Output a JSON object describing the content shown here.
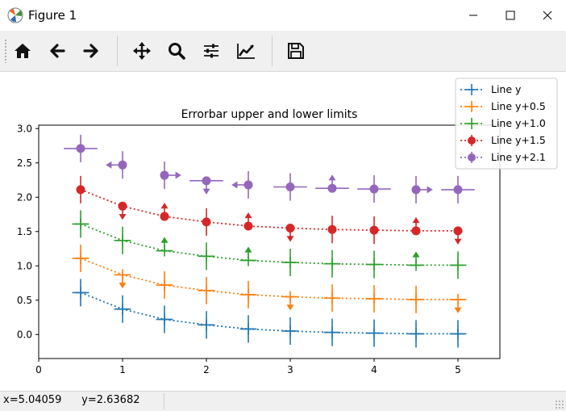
{
  "window": {
    "title": "Figure 1",
    "icon": "matplotlib-icon",
    "controls": [
      "minimize-icon",
      "maximize-icon",
      "close-icon"
    ]
  },
  "toolbar": {
    "buttons": [
      {
        "name": "home-button",
        "icon": "home-icon"
      },
      {
        "name": "back-button",
        "icon": "arrow-left-icon"
      },
      {
        "name": "forward-button",
        "icon": "arrow-right-icon"
      },
      {
        "name": "pan-button",
        "icon": "move-icon"
      },
      {
        "name": "zoom-button",
        "icon": "magnifier-icon"
      },
      {
        "name": "subplots-button",
        "icon": "sliders-icon"
      },
      {
        "name": "edit-axis-button",
        "icon": "line-chart-icon"
      },
      {
        "name": "save-button",
        "icon": "floppy-disk-icon"
      }
    ]
  },
  "status": {
    "text": "x=5.04059      y=2.63682"
  },
  "chart_data": {
    "type": "line",
    "title": "Errorbar upper and lower limits",
    "xlabel": "",
    "ylabel": "",
    "xlim": [
      0,
      5.5
    ],
    "ylim": [
      -0.35,
      3.05
    ],
    "xticks": [
      "0",
      "1",
      "2",
      "3",
      "4",
      "5"
    ],
    "yticks": [
      "0.0",
      "0.5",
      "1.0",
      "1.5",
      "2.0",
      "2.5",
      "3.0"
    ],
    "x": [
      0.5,
      1.0,
      1.5,
      2.0,
      2.5,
      3.0,
      3.5,
      4.0,
      4.5,
      5.0
    ],
    "legend_position": "upper right, outside axes",
    "series": [
      {
        "name": "Line y",
        "color": "#1f77b4",
        "marker": "+",
        "y": [
          0.61,
          0.37,
          0.22,
          0.14,
          0.08,
          0.05,
          0.03,
          0.02,
          0.01,
          0.01
        ],
        "xerr": 0.1,
        "yerr": 0.2,
        "uplims": [
          false,
          false,
          false,
          false,
          false,
          false,
          false,
          false,
          false,
          false
        ],
        "lolims": [
          false,
          false,
          false,
          false,
          false,
          false,
          false,
          false,
          false,
          false
        ]
      },
      {
        "name": "Line y+0.5",
        "color": "#ff7f0e",
        "marker": "+",
        "y": [
          1.11,
          0.87,
          0.72,
          0.64,
          0.58,
          0.55,
          0.53,
          0.52,
          0.51,
          0.51
        ],
        "xerr": 0.1,
        "yerr": 0.2,
        "uplims": [
          false,
          true,
          false,
          false,
          false,
          true,
          false,
          false,
          false,
          true
        ],
        "lolims": [
          false,
          false,
          false,
          false,
          false,
          false,
          false,
          false,
          false,
          false
        ]
      },
      {
        "name": "Line y+1.0",
        "color": "#2ca02c",
        "marker": "+",
        "y": [
          1.61,
          1.37,
          1.22,
          1.14,
          1.08,
          1.05,
          1.03,
          1.02,
          1.01,
          1.01
        ],
        "xerr": 0.1,
        "yerr": 0.2,
        "uplims": [
          false,
          false,
          false,
          false,
          false,
          false,
          false,
          false,
          false,
          false
        ],
        "lolims": [
          false,
          false,
          true,
          false,
          true,
          false,
          false,
          false,
          true,
          false
        ]
      },
      {
        "name": "Line y+1.5",
        "color": "#d62728",
        "marker": "o",
        "y": [
          2.11,
          1.87,
          1.72,
          1.64,
          1.58,
          1.55,
          1.53,
          1.52,
          1.51,
          1.51
        ],
        "xerr": 0,
        "yerr": 0.2,
        "uplims": [
          false,
          true,
          false,
          false,
          false,
          true,
          false,
          false,
          false,
          true
        ],
        "lolims": [
          false,
          false,
          true,
          false,
          true,
          false,
          false,
          false,
          true,
          false
        ]
      },
      {
        "name": "Line y+2.1",
        "color": "#9467bd",
        "marker": "o",
        "y": [
          2.71,
          2.47,
          2.32,
          2.24,
          2.18,
          2.15,
          2.13,
          2.12,
          2.11,
          2.11
        ],
        "xerr": 0.2,
        "yerr": 0.2,
        "uplims": [
          false,
          false,
          false,
          true,
          false,
          false,
          false,
          false,
          false,
          false
        ],
        "lolims": [
          false,
          false,
          false,
          false,
          false,
          false,
          true,
          false,
          false,
          false
        ],
        "xuplims": [
          false,
          false,
          true,
          false,
          false,
          false,
          false,
          false,
          true,
          false
        ],
        "xlolims": [
          false,
          true,
          false,
          false,
          true,
          false,
          false,
          false,
          false,
          false
        ]
      }
    ]
  }
}
